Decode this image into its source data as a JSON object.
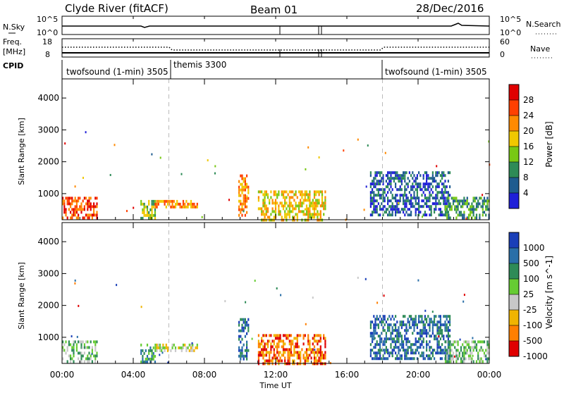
{
  "header": {
    "station": "Clyde River (fitACF)",
    "beam": "Beam 01",
    "date": "28/Dec/2016"
  },
  "top_strips": {
    "nsky_label": "N.Sky",
    "nsky_ticks": [
      "10^5",
      "10^0"
    ],
    "nsearch_label": "N.Search",
    "nsearch_ticks": [
      "10^5",
      "10^0"
    ],
    "freq_label_1": "Freq.",
    "freq_label_2": "[MHz]",
    "freq_ticks": [
      "18",
      "8"
    ],
    "nave_label": "Nave",
    "nave_ticks": [
      "60",
      "0"
    ],
    "cpid_label": "CPID"
  },
  "chart_data": [
    {
      "type": "heatmap",
      "title": "",
      "parameter": "Power",
      "ylabel": "Slant Range [km]",
      "yticks": [
        1000,
        2000,
        3000,
        4000
      ],
      "ylim": [
        180,
        4600
      ],
      "xlim": [
        0,
        24
      ],
      "colorbar": {
        "label": "Power [dB]",
        "ticks": [
          "28",
          "24",
          "20",
          "16",
          "12",
          "8",
          "4"
        ],
        "colors": [
          "#e00000",
          "#ff4000",
          "#ff8a00",
          "#f0c800",
          "#78c814",
          "#2e8b57",
          "#1f5c8f",
          "#1f1fd8"
        ]
      },
      "control_program_changes_hours": [
        6.0,
        18.0
      ],
      "modes": [
        {
          "name": "twofsound (1-min) 3505",
          "start": 0,
          "end": 6
        },
        {
          "name": "themis 3300",
          "start": 6,
          "end": 18
        },
        {
          "name": "twofsound (1-min) 3505",
          "start": 18,
          "end": 24
        }
      ],
      "echo_regions": [
        {
          "t0": 0.0,
          "t1": 2.0,
          "r0": 200,
          "r1": 900,
          "level": 1
        },
        {
          "t0": 4.4,
          "t1": 5.2,
          "r0": 250,
          "r1": 800,
          "level": 4
        },
        {
          "t0": 5.2,
          "t1": 7.6,
          "r0": 550,
          "r1": 800,
          "level": 2
        },
        {
          "t0": 9.9,
          "t1": 10.5,
          "r0": 300,
          "r1": 1600,
          "level": 2
        },
        {
          "t0": 11.0,
          "t1": 14.8,
          "r0": 200,
          "r1": 1100,
          "level": 3
        },
        {
          "t0": 17.3,
          "t1": 21.8,
          "r0": 300,
          "r1": 1700,
          "level": 6
        },
        {
          "t0": 21.5,
          "t1": 24.0,
          "r0": 200,
          "r1": 900,
          "level": 5
        }
      ]
    },
    {
      "type": "heatmap",
      "title": "",
      "parameter": "Velocity",
      "ylabel": "Slant Range [km]",
      "xlabel": "Time UT",
      "xticks": [
        "00:00",
        "04:00",
        "08:00",
        "12:00",
        "16:00",
        "20:00",
        "00:00"
      ],
      "yticks": [
        1000,
        2000,
        3000,
        4000
      ],
      "ylim": [
        180,
        4600
      ],
      "xlim": [
        0,
        24
      ],
      "colorbar": {
        "label": "Velocity [m s^-1]",
        "ticks": [
          "1000",
          "500",
          "100",
          "25",
          "-25",
          "-100",
          "-500",
          "-1000"
        ],
        "colors": [
          "#1a3fb8",
          "#2a6fa8",
          "#2e8b57",
          "#66cc33",
          "#c8c8c8",
          "#f0b400",
          "#ff7f00",
          "#e00000"
        ]
      },
      "echo_regions": [
        {
          "t0": 0.0,
          "t1": 2.0,
          "r0": 200,
          "r1": 900,
          "level": 3
        },
        {
          "t0": 4.4,
          "t1": 5.2,
          "r0": 250,
          "r1": 800,
          "level": 2
        },
        {
          "t0": 5.2,
          "t1": 7.6,
          "r0": 550,
          "r1": 800,
          "level": 4
        },
        {
          "t0": 9.9,
          "t1": 10.5,
          "r0": 300,
          "r1": 1600,
          "level": 1
        },
        {
          "t0": 11.0,
          "t1": 14.8,
          "r0": 200,
          "r1": 1100,
          "level": 6
        },
        {
          "t0": 17.3,
          "t1": 21.8,
          "r0": 300,
          "r1": 1700,
          "level": 1
        },
        {
          "t0": 21.5,
          "t1": 24.0,
          "r0": 200,
          "r1": 900,
          "level": 3
        }
      ]
    }
  ]
}
